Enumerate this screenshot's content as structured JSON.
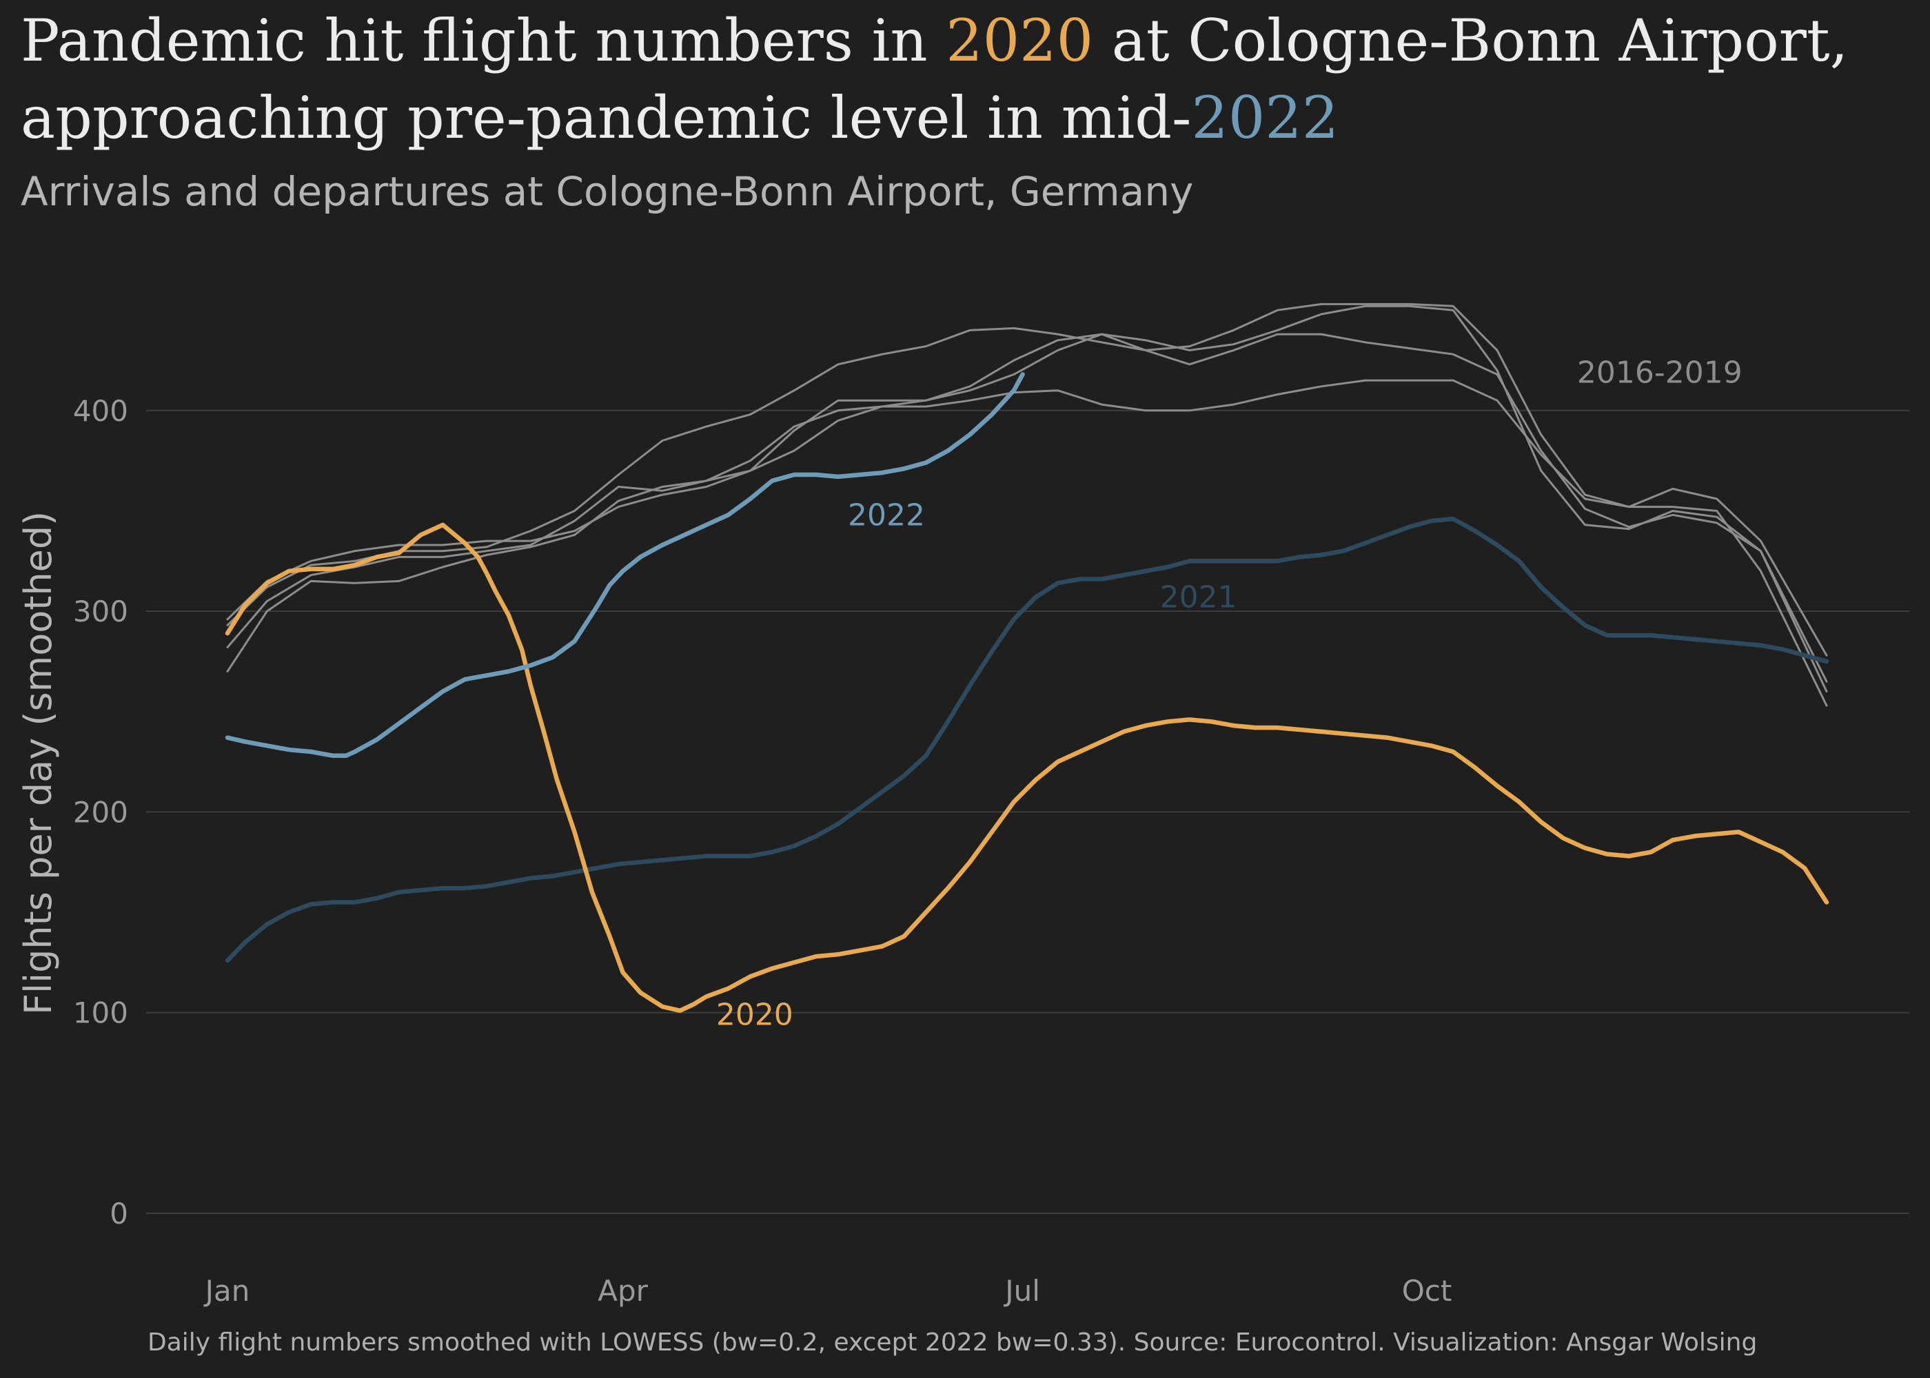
{
  "header": {
    "title_line1_pre": "Pandemic hit flight numbers in ",
    "title_line1_hl": "2020",
    "title_line1_post": " at Cologne-Bonn Airport,",
    "title_line2_pre": "approaching pre-pandemic level in mid-",
    "title_line2_hl": "2022",
    "subtitle": "Arrivals and departures at Cologne-Bonn Airport, Germany"
  },
  "caption": "Daily flight numbers smoothed with LOWESS (bw=0.2, except 2022 bw=0.33). Source: Eurocontrol. Visualization: Ansgar Wolsing",
  "colors": {
    "background": "#1f1f1f",
    "highlight_2020": "#e8a94f",
    "highlight_2022": "#6d9bb8",
    "line_2021": "#2d4a5e",
    "prepandemic": "#8d8d8d"
  },
  "chart_data": {
    "type": "line",
    "ylabel": "Flights per day (smoothed)",
    "xlabel": "",
    "x_unit": "day of year",
    "xlim": [
      1,
      365
    ],
    "ylim": [
      0,
      460
    ],
    "yticks": [
      0,
      100,
      200,
      300,
      400
    ],
    "xticks": [
      {
        "label": "Jan",
        "day": 1
      },
      {
        "label": "Apr",
        "day": 91
      },
      {
        "label": "Jul",
        "day": 182
      },
      {
        "label": "Oct",
        "day": 274
      }
    ],
    "grid": "horizontal",
    "group_labels": [
      {
        "text": "2016-2019",
        "x": 327,
        "y": 419,
        "series": "prepandemic"
      }
    ],
    "series": [
      {
        "name": "2016",
        "group": "prepandemic",
        "x": [
          1,
          10,
          20,
          30,
          40,
          50,
          60,
          70,
          80,
          90,
          100,
          110,
          120,
          130,
          140,
          150,
          160,
          170,
          180,
          190,
          200,
          210,
          220,
          230,
          240,
          250,
          260,
          270,
          280,
          290,
          300,
          310,
          320,
          330,
          340,
          350,
          365
        ],
        "y": [
          270,
          300,
          315,
          314,
          315,
          322,
          328,
          332,
          338,
          355,
          362,
          365,
          370,
          380,
          395,
          402,
          405,
          410,
          418,
          430,
          438,
          435,
          430,
          433,
          440,
          448,
          452,
          452,
          450,
          420,
          370,
          343,
          341,
          350,
          347,
          330,
          265
        ]
      },
      {
        "name": "2017",
        "group": "prepandemic",
        "x": [
          1,
          10,
          20,
          30,
          40,
          50,
          60,
          70,
          80,
          90,
          100,
          110,
          120,
          130,
          140,
          150,
          160,
          170,
          180,
          190,
          200,
          210,
          220,
          230,
          240,
          250,
          260,
          270,
          280,
          290,
          300,
          310,
          320,
          330,
          340,
          350,
          365
        ],
        "y": [
          296,
          315,
          325,
          330,
          333,
          333,
          335,
          335,
          340,
          352,
          358,
          362,
          370,
          390,
          405,
          405,
          405,
          412,
          425,
          435,
          438,
          430,
          423,
          430,
          438,
          438,
          434,
          431,
          428,
          418,
          380,
          351,
          342,
          348,
          344,
          330,
          260
        ]
      },
      {
        "name": "2018",
        "group": "prepandemic",
        "x": [
          1,
          10,
          20,
          30,
          40,
          50,
          60,
          70,
          80,
          90,
          100,
          110,
          120,
          130,
          140,
          150,
          160,
          170,
          180,
          190,
          200,
          210,
          220,
          230,
          240,
          250,
          260,
          270,
          280,
          290,
          300,
          310,
          320,
          330,
          340,
          350,
          365
        ],
        "y": [
          293,
          312,
          323,
          325,
          330,
          330,
          332,
          340,
          350,
          368,
          385,
          392,
          398,
          410,
          423,
          428,
          432,
          440,
          441,
          438,
          434,
          430,
          432,
          440,
          450,
          453,
          453,
          453,
          452,
          430,
          388,
          358,
          352,
          361,
          356,
          335,
          278
        ]
      },
      {
        "name": "2019",
        "group": "prepandemic",
        "x": [
          1,
          10,
          20,
          30,
          40,
          50,
          60,
          70,
          80,
          90,
          100,
          110,
          120,
          130,
          140,
          150,
          160,
          170,
          180,
          190,
          200,
          210,
          220,
          230,
          240,
          250,
          260,
          270,
          280,
          290,
          300,
          310,
          320,
          330,
          340,
          350,
          365
        ],
        "y": [
          282,
          305,
          318,
          322,
          327,
          327,
          330,
          333,
          345,
          362,
          360,
          365,
          375,
          392,
          400,
          402,
          402,
          405,
          409,
          410,
          403,
          400,
          400,
          403,
          408,
          412,
          415,
          415,
          415,
          405,
          378,
          356,
          352,
          352,
          350,
          320,
          253
        ]
      },
      {
        "name": "2020",
        "group": "2020",
        "label": "2020",
        "label_x": 121,
        "label_y": 99,
        "x": [
          1,
          5,
          10,
          15,
          20,
          25,
          30,
          35,
          40,
          45,
          50,
          55,
          58,
          60,
          62,
          65,
          68,
          70,
          73,
          76,
          80,
          84,
          88,
          91,
          95,
          100,
          104,
          107,
          110,
          115,
          120,
          125,
          130,
          135,
          140,
          145,
          150,
          155,
          160,
          165,
          170,
          175,
          180,
          185,
          190,
          195,
          200,
          205,
          210,
          215,
          220,
          225,
          230,
          235,
          240,
          245,
          250,
          255,
          260,
          265,
          270,
          275,
          280,
          285,
          290,
          295,
          300,
          305,
          310,
          315,
          320,
          325,
          330,
          335,
          340,
          345,
          350,
          355,
          360,
          365
        ],
        "y": [
          289,
          303,
          314,
          320,
          321,
          321,
          323,
          327,
          329,
          338,
          343,
          334,
          327,
          319,
          310,
          298,
          281,
          263,
          240,
          216,
          190,
          160,
          138,
          120,
          110,
          103,
          101,
          104,
          108,
          112,
          118,
          122,
          125,
          128,
          129,
          131,
          133,
          138,
          150,
          162,
          175,
          190,
          205,
          216,
          225,
          230,
          235,
          240,
          243,
          245,
          246,
          245,
          243,
          242,
          242,
          241,
          240,
          239,
          238,
          237,
          235,
          233,
          230,
          222,
          213,
          205,
          195,
          187,
          182,
          179,
          178,
          180,
          186,
          188,
          189,
          190,
          185,
          180,
          172,
          155
        ]
      },
      {
        "name": "2021",
        "group": "2021",
        "label": "2021",
        "label_x": 222,
        "label_y": 307,
        "x": [
          1,
          5,
          10,
          15,
          20,
          25,
          30,
          35,
          40,
          45,
          50,
          55,
          60,
          65,
          70,
          75,
          80,
          85,
          90,
          95,
          100,
          105,
          110,
          115,
          120,
          125,
          130,
          135,
          140,
          145,
          150,
          155,
          160,
          165,
          170,
          175,
          180,
          185,
          190,
          195,
          200,
          205,
          210,
          215,
          220,
          225,
          230,
          235,
          240,
          245,
          250,
          255,
          260,
          265,
          270,
          275,
          280,
          285,
          290,
          295,
          300,
          305,
          310,
          315,
          320,
          325,
          330,
          335,
          340,
          345,
          350,
          355,
          360,
          365
        ],
        "y": [
          126,
          135,
          144,
          150,
          154,
          155,
          155,
          157,
          160,
          161,
          162,
          162,
          163,
          165,
          167,
          168,
          170,
          172,
          174,
          175,
          176,
          177,
          178,
          178,
          178,
          180,
          183,
          188,
          194,
          202,
          210,
          218,
          228,
          245,
          263,
          280,
          296,
          307,
          314,
          316,
          316,
          318,
          320,
          322,
          325,
          325,
          325,
          325,
          325,
          327,
          328,
          330,
          334,
          338,
          342,
          345,
          346,
          340,
          333,
          325,
          312,
          302,
          293,
          288,
          288,
          288,
          287,
          286,
          285,
          284,
          283,
          281,
          278,
          275
        ]
      },
      {
        "name": "2022",
        "group": "2022",
        "label": "2022",
        "label_x": 151,
        "label_y": 348,
        "x": [
          1,
          5,
          10,
          15,
          20,
          25,
          28,
          30,
          35,
          40,
          45,
          50,
          55,
          60,
          65,
          70,
          75,
          80,
          85,
          88,
          91,
          95,
          100,
          105,
          110,
          115,
          120,
          125,
          130,
          135,
          140,
          145,
          150,
          155,
          160,
          165,
          170,
          175,
          180,
          182
        ],
        "y": [
          237,
          235,
          233,
          231,
          230,
          228,
          228,
          230,
          236,
          244,
          252,
          260,
          266,
          268,
          270,
          273,
          277,
          285,
          302,
          313,
          320,
          327,
          333,
          338,
          343,
          348,
          356,
          365,
          368,
          368,
          367,
          368,
          369,
          371,
          374,
          380,
          388,
          398,
          410,
          418
        ]
      }
    ]
  }
}
